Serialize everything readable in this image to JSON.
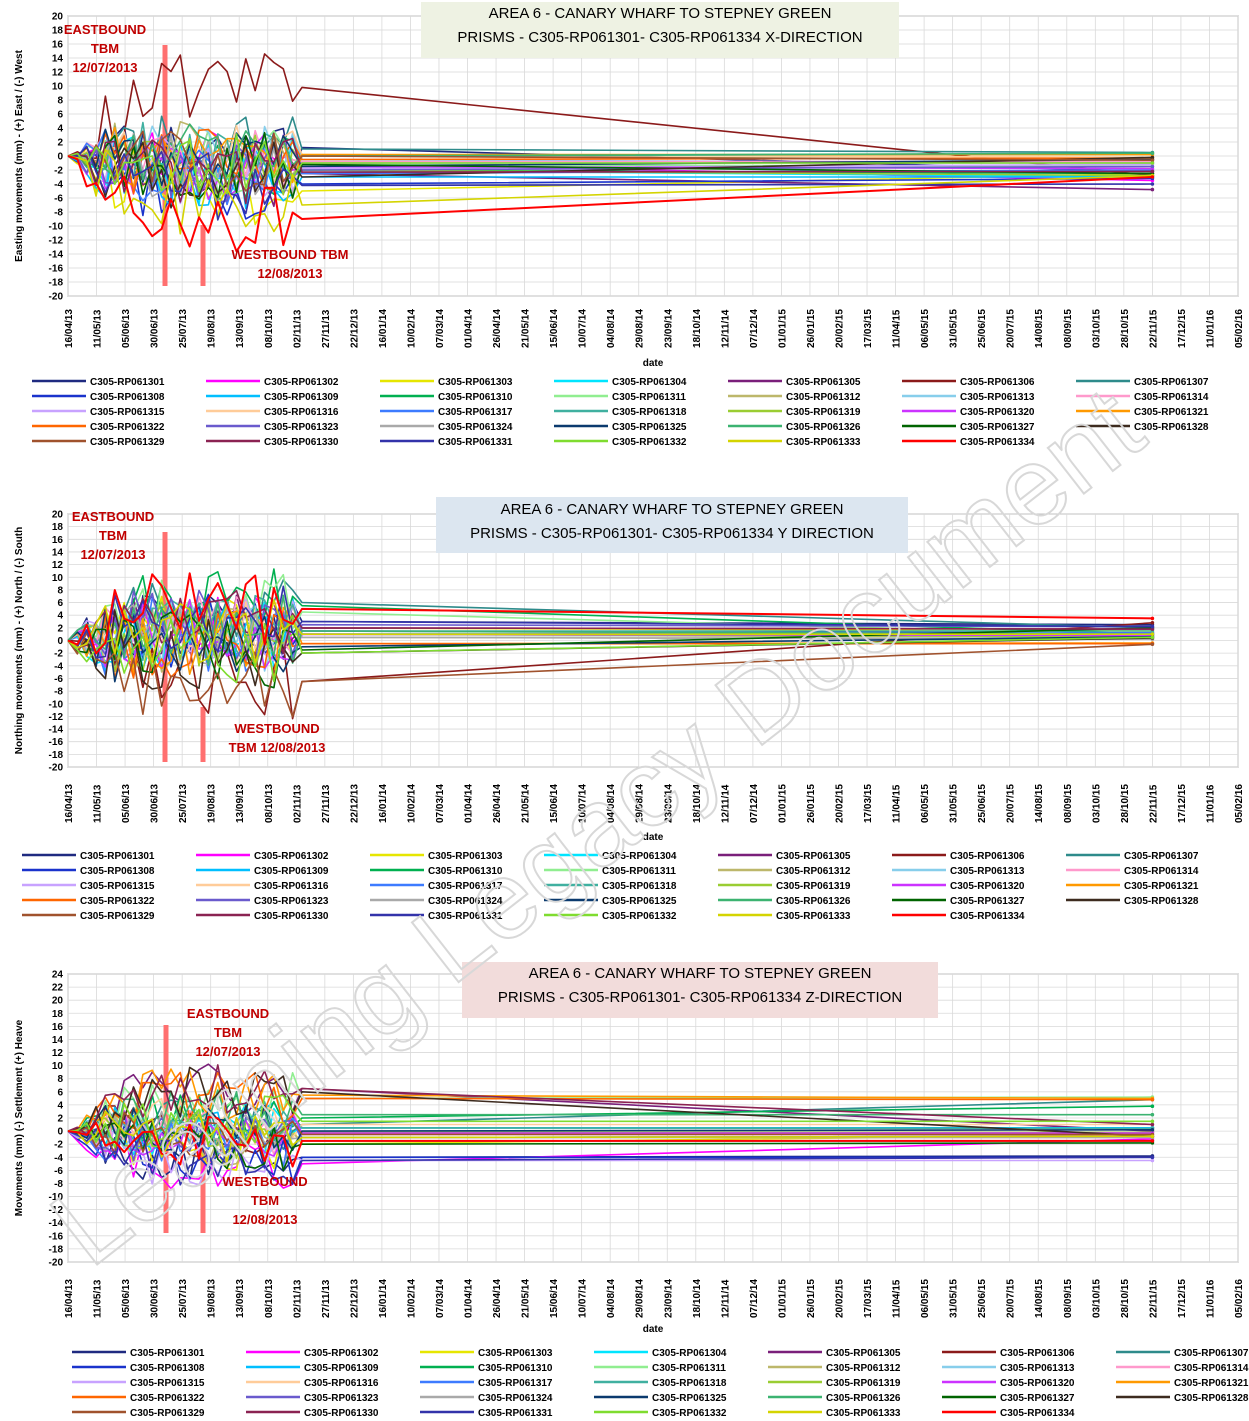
{
  "watermark": "Learning Legacy Document",
  "shared": {
    "date_ticks": [
      "16/04/13",
      "11/05/13",
      "05/06/13",
      "30/06/13",
      "25/07/13",
      "19/08/13",
      "13/09/13",
      "08/10/13",
      "02/11/13",
      "27/11/13",
      "22/12/13",
      "16/01/14",
      "10/02/14",
      "07/03/14",
      "01/04/14",
      "26/04/14",
      "21/05/14",
      "15/06/14",
      "10/07/14",
      "04/08/14",
      "29/08/14",
      "23/09/14",
      "18/10/14",
      "12/11/14",
      "07/12/14",
      "01/01/15",
      "26/01/15",
      "20/02/15",
      "17/03/15",
      "11/04/15",
      "06/05/15",
      "31/05/15",
      "25/06/15",
      "20/07/15",
      "14/08/15",
      "08/09/15",
      "03/10/15",
      "28/10/15",
      "22/11/15",
      "17/12/15",
      "11/01/16",
      "05/02/16"
    ],
    "series_names": [
      "C305-RP061301",
      "C305-RP061302",
      "C305-RP061303",
      "C305-RP061304",
      "C305-RP061305",
      "C305-RP061306",
      "C305-RP061307",
      "C305-RP061308",
      "C305-RP061309",
      "C305-RP061310",
      "C305-RP061311",
      "C305-RP061312",
      "C305-RP061313",
      "C305-RP061314",
      "C305-RP061315",
      "C305-RP061316",
      "C305-RP061317",
      "C305-RP061318",
      "C305-RP061319",
      "C305-RP061320",
      "C305-RP061321",
      "C305-RP061322",
      "C305-RP061323",
      "C305-RP061324",
      "C305-RP061325",
      "C305-RP061326",
      "C305-RP061327",
      "C305-RP061328",
      "C305-RP061329",
      "C305-RP061330",
      "C305-RP061331",
      "C305-RP061332",
      "C305-RP061333",
      "C305-RP061334"
    ],
    "series_colors": [
      "#1f2a80",
      "#ff00ff",
      "#e6e600",
      "#00e5ff",
      "#7a1f7a",
      "#8b1a1a",
      "#2e8b8b",
      "#1a33cc",
      "#00bfff",
      "#00b050",
      "#90ee90",
      "#bdb76b",
      "#87ceeb",
      "#ff99cc",
      "#c8a2ff",
      "#ffcc99",
      "#3d7bff",
      "#40b0a0",
      "#9acd32",
      "#cc33ff",
      "#ff9900",
      "#ff6600",
      "#6a5acd",
      "#a9a9a9",
      "#0b3a6e",
      "#3cb371",
      "#006400",
      "#3d2b1f",
      "#a0522d",
      "#8b2252",
      "#3333aa",
      "#7fdc2f",
      "#d4d400",
      "#ff0000"
    ]
  },
  "chart_data": [
    {
      "type": "line",
      "title": [
        "AREA 6 - CANARY WHARF TO STEPNEY GREEN",
        "PRISMS - C305-RP061301- C305-RP061334  X-DIRECTION"
      ],
      "xlabel": "date",
      "ylabel": "Easting movements (mm)  - (+) East / (-) West",
      "ylim": [
        -20,
        20
      ],
      "ystep": 2,
      "title_bg": "#eef2e3",
      "annotations": [
        {
          "text": [
            "EASTBOUND",
            "TBM",
            "12/07/2013"
          ],
          "date": "12/07/2013"
        },
        {
          "text": [
            "WESTBOUND TBM",
            "12/08/2013"
          ],
          "date": "12/08/2013"
        }
      ],
      "final_date": "22/11/15",
      "last_active_date": "07/11/13",
      "final_values": [
        -2.2,
        -3.5,
        -2.5,
        -3.0,
        -4.8,
        -2.8,
        0.5,
        -3.2,
        -3.0,
        -2.5,
        -1.5,
        -0.5,
        -1.0,
        -0.8,
        -1.2,
        -0.2,
        -2.0,
        0.3,
        -2.8,
        -1.8,
        0.2,
        -0.3,
        -1.5,
        -1.0,
        -0.5,
        0.4,
        -2.5,
        -0.2,
        -0.6,
        -2.2,
        -4.0,
        -1.0,
        -2.8,
        -3.0
      ],
      "late_values": [
        1.2,
        -1.0,
        -5.0,
        -2.0,
        -2.5,
        9.8,
        1.0,
        -4.0,
        -3.0,
        -2.0,
        -1.2,
        0.0,
        -0.5,
        -0.8,
        -1.8,
        0.2,
        -2.5,
        0.0,
        -2.0,
        -1.5,
        0.2,
        -0.5,
        -2.0,
        -1.0,
        -1.5,
        0.0,
        -1.2,
        -3.0,
        0.0,
        -2.3,
        -4.2,
        -1.0,
        -7.0,
        -9.0
      ],
      "activity_amplitude": 5
    },
    {
      "type": "line",
      "title": [
        "AREA 6 - CANARY WHARF TO STEPNEY GREEN",
        "PRISMS - C305-RP061301- C305-RP061334  Y DIRECTION"
      ],
      "xlabel": "date",
      "ylabel": "Northing movements (mm)  - (+) North / (-) South",
      "ylim": [
        -20,
        20
      ],
      "ystep": 2,
      "title_bg": "#dce6f0",
      "annotations": [
        {
          "text": [
            "EASTBOUND",
            "TBM",
            "12/07/2013"
          ],
          "date": "12/07/2013"
        },
        {
          "text": [
            "WESTBOUND",
            "TBM 12/08/2013"
          ],
          "date": "12/08/2013"
        }
      ],
      "final_date": "22/11/15",
      "last_active_date": "07/11/13",
      "final_values": [
        2.5,
        0.8,
        1.5,
        0.8,
        1.8,
        2.8,
        2.0,
        1.2,
        1.0,
        1.0,
        0.8,
        0.5,
        0.4,
        0.6,
        1.0,
        0.3,
        1.2,
        1.5,
        0.6,
        0.8,
        -0.4,
        -0.5,
        2.2,
        0.2,
        0.6,
        1.0,
        2.0,
        0.4,
        -0.6,
        1.8,
        2.2,
        0.5,
        1.0,
        3.5
      ],
      "late_values": [
        3.0,
        1.0,
        2.0,
        1.0,
        2.0,
        -6.5,
        6.0,
        1.5,
        1.0,
        5.5,
        4.5,
        0.5,
        0.5,
        1.0,
        1.5,
        0.5,
        1.0,
        1.5,
        1.0,
        1.0,
        -0.5,
        -0.5,
        2.5,
        0.5,
        -1.0,
        1.5,
        -1.5,
        -2.0,
        -6.5,
        2.0,
        3.0,
        -2.0,
        1.0,
        5.0
      ],
      "activity_amplitude": 6
    },
    {
      "type": "line",
      "title": [
        "AREA 6 - CANARY WHARF TO STEPNEY GREEN",
        "PRISMS - C305-RP061301- C305-RP061334  Z-DIRECTION"
      ],
      "xlabel": "date",
      "ylabel": "Movements (mm) (-) Settlement (+) Heave",
      "ylim": [
        -20,
        24
      ],
      "ystep": 2,
      "title_bg": "#f2dcdb",
      "annotations": [
        {
          "text": [
            "EASTBOUND",
            "TBM",
            "12/07/2013"
          ],
          "date": "12/07/2013"
        },
        {
          "text": [
            "WESTBOUND",
            "TBM",
            "12/08/2013"
          ],
          "date": "12/08/2013"
        }
      ],
      "final_date": "22/11/15",
      "last_active_date": "07/11/13",
      "final_values": [
        -3.8,
        -1.2,
        -0.5,
        0.5,
        0.0,
        0.5,
        4.8,
        -4.0,
        0.5,
        3.8,
        5.2,
        -1.5,
        -0.8,
        -0.5,
        -4.5,
        1.0,
        -1.5,
        0.4,
        -0.2,
        -0.3,
        5.0,
        4.8,
        -0.8,
        -1.0,
        0.2,
        2.5,
        -1.8,
        -0.8,
        -0.5,
        1.0,
        -4.0,
        1.5,
        -0.8,
        -1.5
      ],
      "late_values": [
        -4.0,
        -5.0,
        -2.0,
        0.5,
        6.5,
        0.5,
        1.0,
        -4.0,
        0.5,
        2.0,
        5.0,
        -1.5,
        -1.0,
        -0.5,
        -4.5,
        1.0,
        -1.5,
        0.5,
        -0.2,
        -0.3,
        5.5,
        5.0,
        -1.0,
        -1.0,
        0.0,
        2.5,
        -2.0,
        6.0,
        -0.5,
        6.5,
        -4.5,
        1.5,
        -1.0,
        -1.5
      ],
      "activity_amplitude": 4
    }
  ]
}
